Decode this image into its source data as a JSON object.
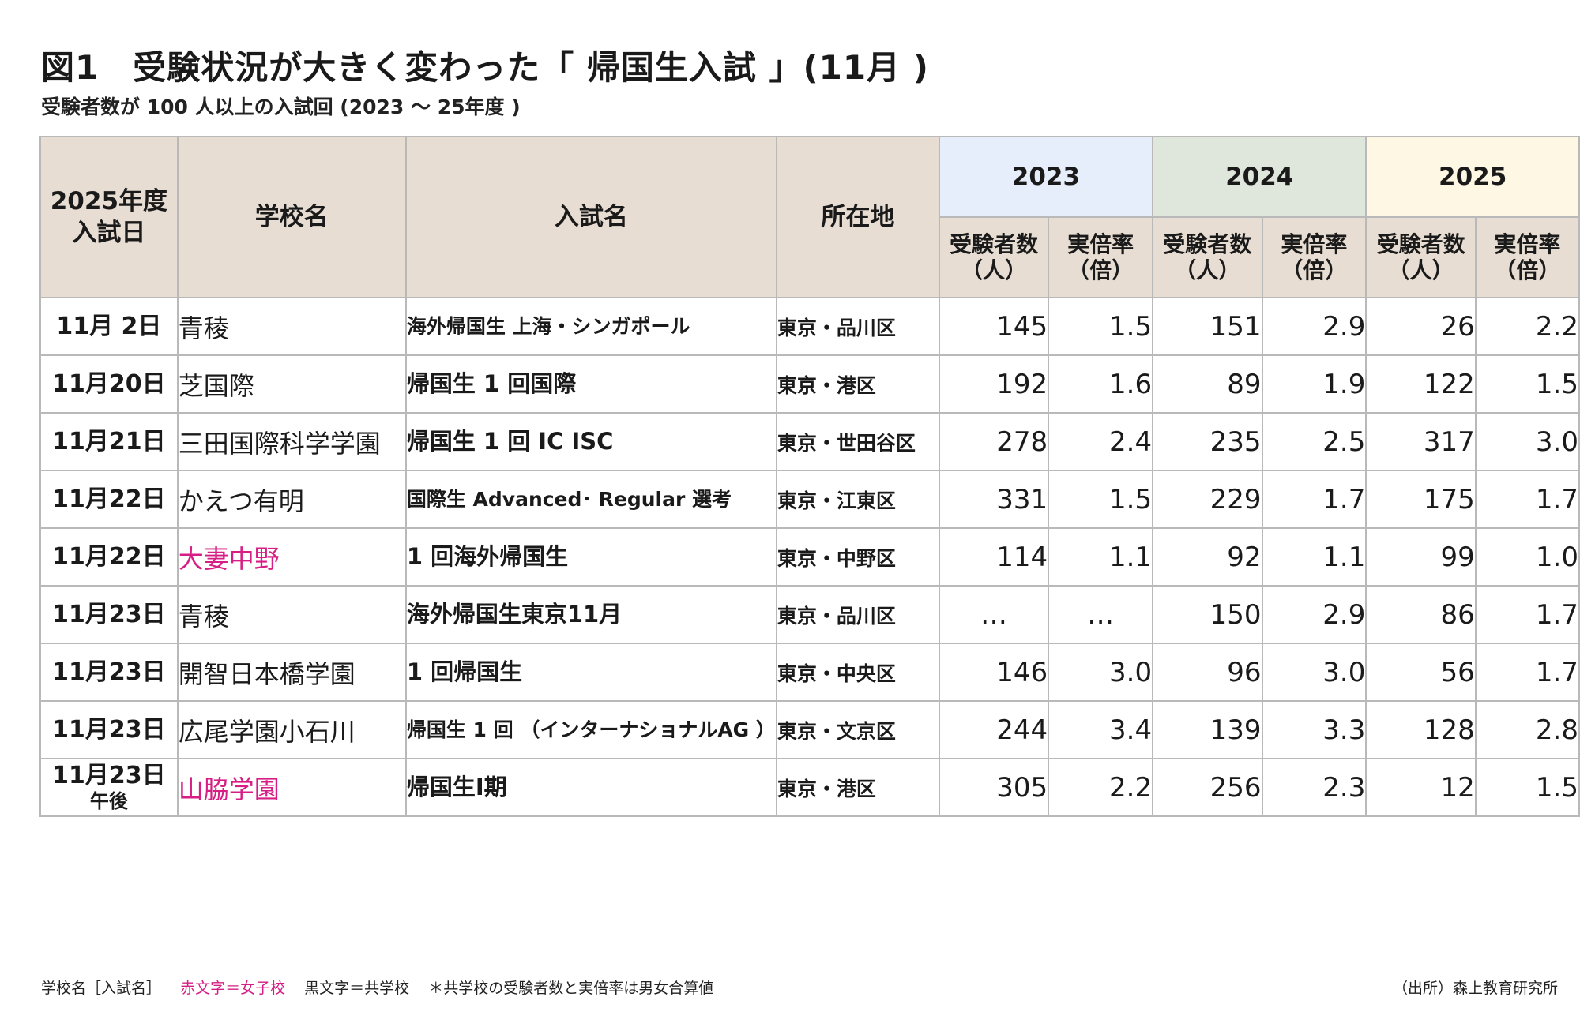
{
  "title": "図1　受験状況が大きく変わった「 帰国生入試 」(11月 )",
  "subtitle": "受験者数が 100 人以上の入試回 (2023 ～ 25年度 )",
  "headers": {
    "date_line1": "2025年度",
    "date_line2": "入試日",
    "school": "学校名",
    "exam": "入試名",
    "location": "所在地",
    "years": [
      "2023",
      "2024",
      "2025"
    ],
    "applicants_line1": "受験者数",
    "applicants_line2": "（人）",
    "ratio_line1": "実倍率",
    "ratio_line2": "（倍）"
  },
  "colors": {
    "header_beige": "#e7ddd2",
    "year_2023": "#e7eefb",
    "year_2024": "#dfe6dc",
    "year_2025": "#fdf7e3",
    "girls_school": "#d61e84",
    "coed_school": "#1a1a1a",
    "grid_line": "#b9b9b9"
  },
  "rows": [
    {
      "date": "11月  2日",
      "date_note": "",
      "school": "青稜",
      "girls": false,
      "exam": "海外帰国生\n上海・シンガポール",
      "exam_small": true,
      "location": "東京・品川区",
      "v": [
        "145",
        "1.5",
        "151",
        "2.9",
        "26",
        "2.2"
      ]
    },
    {
      "date": "11月20日",
      "date_note": "",
      "school": "芝国際",
      "girls": false,
      "exam": "帰国生 1 回国際",
      "exam_small": false,
      "location": "東京・港区",
      "v": [
        "192",
        "1.6",
        "89",
        "1.9",
        "122",
        "1.5"
      ]
    },
    {
      "date": "11月21日",
      "date_note": "",
      "school": "三田国際科学学園",
      "girls": false,
      "exam": "帰国生 1 回 IC ISC",
      "exam_small": false,
      "location": "東京・世田谷区",
      "v": [
        "278",
        "2.4",
        "235",
        "2.5",
        "317",
        "3.0"
      ]
    },
    {
      "date": "11月22日",
      "date_note": "",
      "school": "かえつ有明",
      "girls": false,
      "exam": "国際生 Advanced･\nRegular 選考",
      "exam_small": true,
      "location": "東京・江東区",
      "v": [
        "331",
        "1.5",
        "229",
        "1.7",
        "175",
        "1.7"
      ]
    },
    {
      "date": "11月22日",
      "date_note": "",
      "school": "大妻中野",
      "girls": true,
      "exam": "1 回海外帰国生",
      "exam_small": false,
      "location": "東京・中野区",
      "v": [
        "114",
        "1.1",
        "92",
        "1.1",
        "99",
        "1.0"
      ]
    },
    {
      "date": "11月23日",
      "date_note": "",
      "school": "青稜",
      "girls": false,
      "exam": "海外帰国生東京11月",
      "exam_small": false,
      "location": "東京・品川区",
      "v": [
        "…",
        "…",
        "150",
        "2.9",
        "86",
        "1.7"
      ]
    },
    {
      "date": "11月23日",
      "date_note": "",
      "school": "開智日本橋学園",
      "girls": false,
      "exam": "1 回帰国生",
      "exam_small": false,
      "location": "東京・中央区",
      "v": [
        "146",
        "3.0",
        "96",
        "3.0",
        "56",
        "1.7"
      ]
    },
    {
      "date": "11月23日",
      "date_note": "",
      "school": "広尾学園小石川",
      "girls": false,
      "exam": "帰国生 1 回\n（インターナショナルAG ）",
      "exam_small": true,
      "location": "東京・文京区",
      "v": [
        "244",
        "3.4",
        "139",
        "3.3",
        "128",
        "2.8"
      ]
    },
    {
      "date": "11月23日",
      "date_note": "午後",
      "school": "山脇学園",
      "girls": true,
      "exam": "帰国生Ⅰ期",
      "exam_small": false,
      "location": "東京・港区",
      "v": [
        "305",
        "2.2",
        "256",
        "2.3",
        "12",
        "1.5"
      ]
    }
  ],
  "footer": {
    "legend_label": "学校名［入試名］",
    "legend_girls": "赤文字＝女子校",
    "legend_coed": "黒文字＝共学校",
    "note": "＊共学校の受験者数と実倍率は男女合算値",
    "source": "（出所）森上教育研究所"
  }
}
